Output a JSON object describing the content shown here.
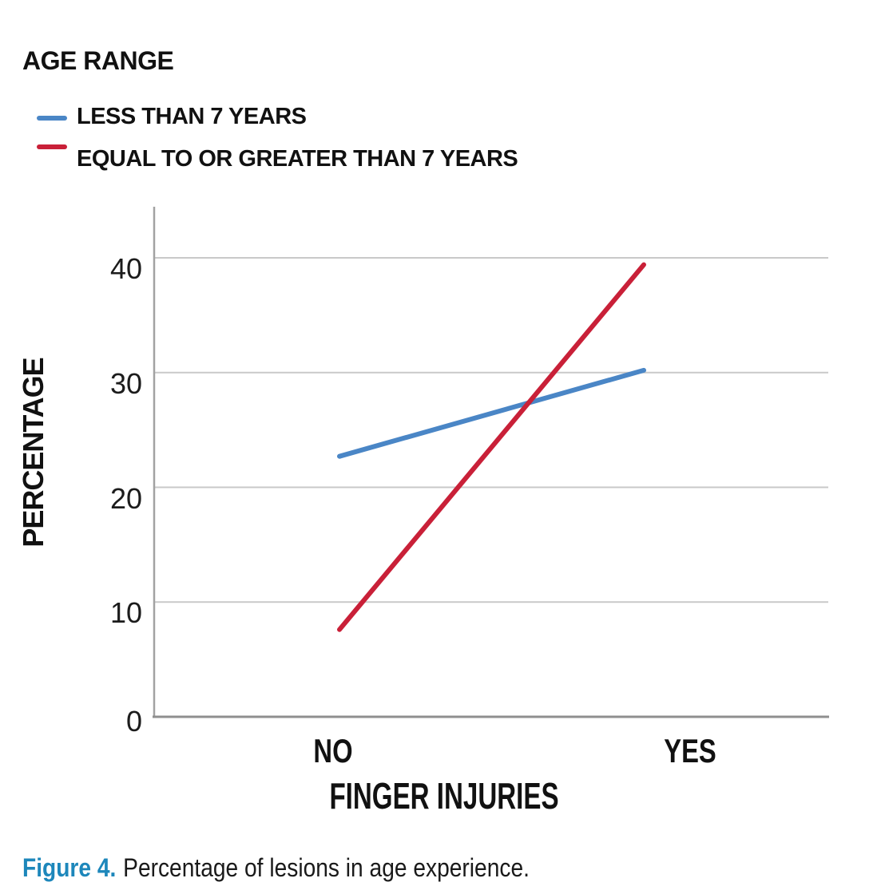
{
  "legend": {
    "title": "AGE RANGE",
    "items": [
      {
        "label": "LESS THAN 7 YEARS",
        "color": "#4a86c6"
      },
      {
        "label": "EQUAL TO OR GREATER THAN 7 YEARS",
        "color": "#c92038"
      }
    ]
  },
  "chart_data": {
    "type": "line",
    "categories": [
      "NO",
      "YES"
    ],
    "series": [
      {
        "name": "LESS THAN 7 YEARS",
        "color": "#4a86c6",
        "values": [
          22.7,
          30.2
        ]
      },
      {
        "name": "EQUAL TO OR GREATER THAN 7 YEARS",
        "color": "#c92038",
        "values": [
          7.6,
          39.4
        ]
      }
    ],
    "title": "",
    "xlabel": "FINGER INJURIES",
    "ylabel": "PERCENTAGE",
    "ylim": [
      0,
      44.5
    ],
    "yticks": [
      0,
      10,
      20,
      30,
      40
    ],
    "grid": "horizontal",
    "legend_position": "top-left",
    "axis_color": "#9a9a9a",
    "gridline_color": "#c9c9c9"
  },
  "caption": {
    "label": "Figure 4.",
    "label_color": "#1d87bb",
    "text": "Percentage of lesions in age experience."
  }
}
